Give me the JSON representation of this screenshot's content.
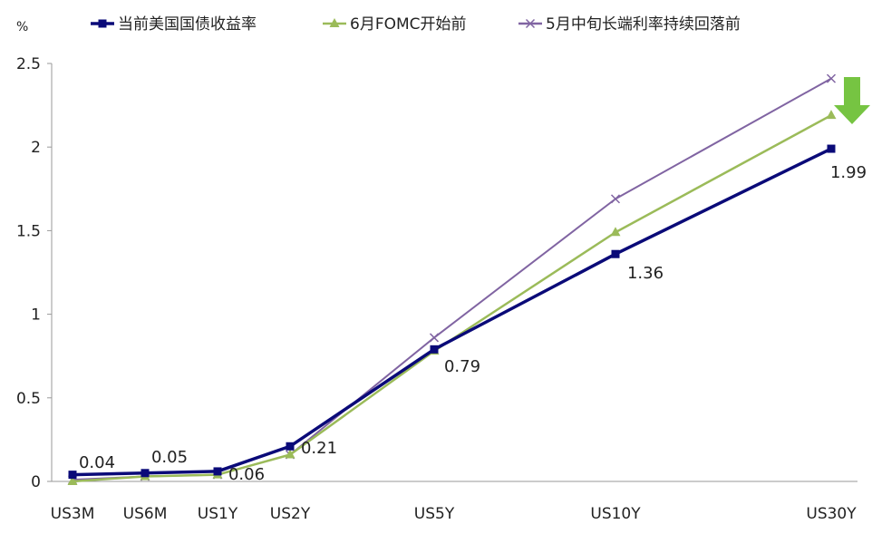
{
  "chart_data": {
    "type": "line",
    "y_unit": "%",
    "ylim": [
      0,
      2.5
    ],
    "yticks": [
      "0",
      "0.5",
      "1",
      "1.5",
      "2",
      "2.5"
    ],
    "categories": [
      "US3M",
      "US6M",
      "US1Y",
      "US2Y",
      "US5Y",
      "US10Y",
      "US30Y"
    ],
    "x": [
      0.25,
      0.5,
      1,
      2,
      5,
      10,
      30
    ],
    "legend_position": "top",
    "grid": false,
    "series": [
      {
        "name": "当前美国国债收益率",
        "color": "#0a0a78",
        "marker": "square",
        "values": [
          0.04,
          0.05,
          0.06,
          0.21,
          0.79,
          1.36,
          1.99
        ],
        "labels": [
          "0.04",
          "0.05",
          "0.06",
          "0.21",
          "0.79",
          "1.36",
          "1.99"
        ]
      },
      {
        "name": "6月FOMC开始前",
        "color": "#9bbb59",
        "marker": "triangle",
        "values": [
          0.0,
          0.03,
          0.04,
          0.16,
          0.78,
          1.49,
          2.19
        ]
      },
      {
        "name": "5月中旬长端利率持续回落前",
        "color": "#8064a2",
        "marker": "x",
        "values": [
          0.01,
          0.03,
          0.04,
          0.16,
          0.86,
          1.69,
          2.41
        ]
      }
    ],
    "annotation": {
      "type": "down-arrow",
      "color": "#76c442"
    }
  }
}
